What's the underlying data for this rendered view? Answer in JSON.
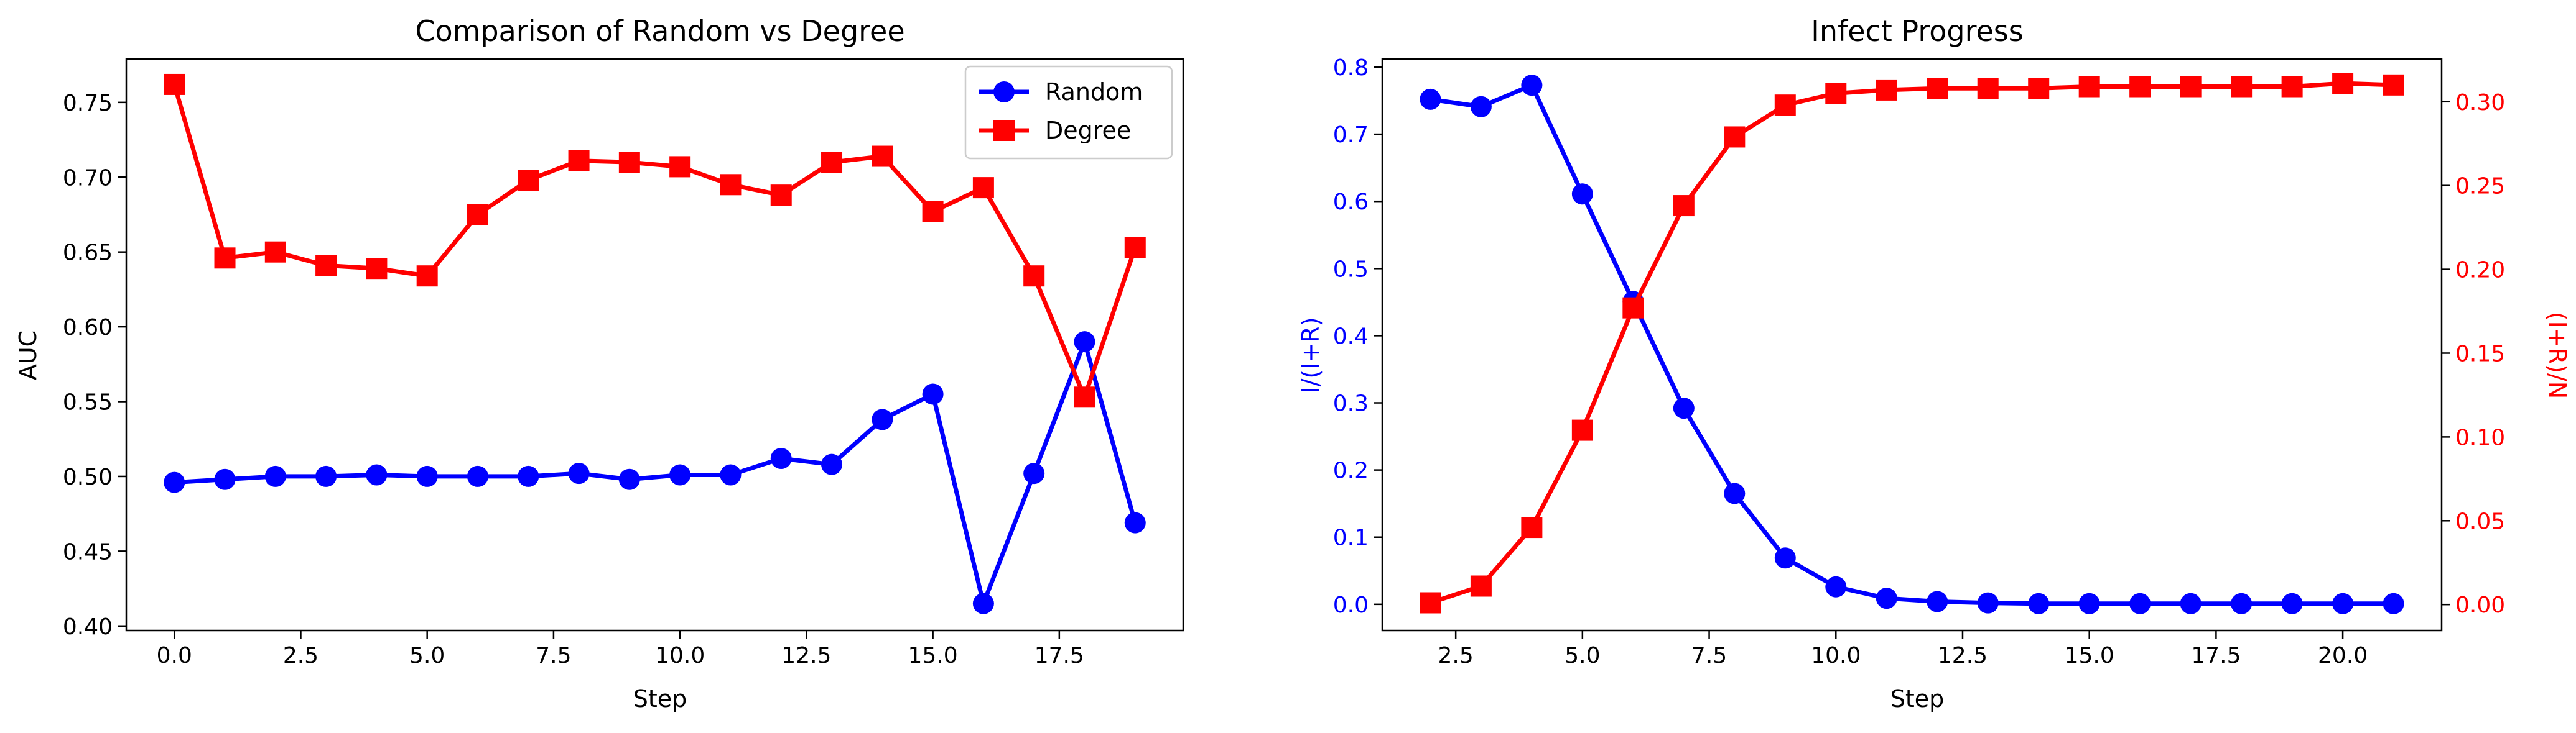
{
  "chart_data": [
    {
      "type": "line",
      "title": "Comparison of Random vs Degree",
      "xlabel": "Step",
      "ylabel": "AUC",
      "xlim": [
        -0.95,
        19.95
      ],
      "ylim": [
        0.397,
        0.779
      ],
      "xticks": [
        0.0,
        2.5,
        5.0,
        7.5,
        10.0,
        12.5,
        15.0,
        17.5
      ],
      "xtick_labels": [
        "0.0",
        "2.5",
        "5.0",
        "7.5",
        "10.0",
        "12.5",
        "15.0",
        "17.5"
      ],
      "yticks": [
        0.4,
        0.45,
        0.5,
        0.55,
        0.6,
        0.65,
        0.7,
        0.75
      ],
      "ytick_labels": [
        "0.40",
        "0.45",
        "0.50",
        "0.55",
        "0.60",
        "0.65",
        "0.70",
        "0.75"
      ],
      "grid": false,
      "legend": "top-right",
      "x": [
        0,
        1,
        2,
        3,
        4,
        5,
        6,
        7,
        8,
        9,
        10,
        11,
        12,
        13,
        14,
        15,
        16,
        17,
        18,
        19
      ],
      "series": [
        {
          "name": "Random",
          "color": "#0000ff",
          "marker": "circle",
          "values": [
            0.496,
            0.498,
            0.5,
            0.5,
            0.501,
            0.5,
            0.5,
            0.5,
            0.502,
            0.498,
            0.501,
            0.501,
            0.512,
            0.508,
            0.538,
            0.555,
            0.415,
            0.502,
            0.59,
            0.469
          ]
        },
        {
          "name": "Degree",
          "color": "#ff0000",
          "marker": "square",
          "values": [
            0.762,
            0.646,
            0.65,
            0.641,
            0.639,
            0.634,
            0.675,
            0.698,
            0.711,
            0.71,
            0.707,
            0.695,
            0.688,
            0.71,
            0.714,
            0.677,
            0.693,
            0.634,
            0.553,
            0.653
          ]
        }
      ]
    },
    {
      "type": "line",
      "title": "Infect Progress",
      "xlabel": "Step",
      "ylabel": "I/(I+R)",
      "ylabel_right": "(I+R)/N",
      "xlim": [
        1.05,
        21.95
      ],
      "ylim": [
        -0.039,
        0.812
      ],
      "ylim_right": [
        -0.0155,
        0.3255
      ],
      "xticks": [
        2.5,
        5.0,
        7.5,
        10.0,
        12.5,
        15.0,
        17.5,
        20.0
      ],
      "xtick_labels": [
        "2.5",
        "5.0",
        "7.5",
        "10.0",
        "12.5",
        "15.0",
        "17.5",
        "20.0"
      ],
      "yticks": [
        0.0,
        0.1,
        0.2,
        0.3,
        0.4,
        0.5,
        0.6,
        0.7,
        0.8
      ],
      "ytick_labels": [
        "0.0",
        "0.1",
        "0.2",
        "0.3",
        "0.4",
        "0.5",
        "0.6",
        "0.7",
        "0.8"
      ],
      "yticks_right": [
        0.0,
        0.05,
        0.1,
        0.15,
        0.2,
        0.25,
        0.3
      ],
      "ytick_labels_right": [
        "0.00",
        "0.05",
        "0.10",
        "0.15",
        "0.20",
        "0.25",
        "0.30"
      ],
      "grid": false,
      "left_color": "#0000ff",
      "right_color": "#ff0000",
      "x": [
        2,
        3,
        4,
        5,
        6,
        7,
        8,
        9,
        10,
        11,
        12,
        13,
        14,
        15,
        16,
        17,
        18,
        19,
        20,
        21
      ],
      "series": [
        {
          "axis": "left",
          "color": "#0000ff",
          "marker": "circle",
          "values": [
            0.752,
            0.741,
            0.773,
            0.611,
            0.451,
            0.292,
            0.165,
            0.069,
            0.026,
            0.009,
            0.004,
            0.002,
            0.001,
            0.001,
            0.001,
            0.001,
            0.001,
            0.001,
            0.001,
            0.001
          ]
        },
        {
          "axis": "right",
          "color": "#ff0000",
          "marker": "square",
          "values": [
            0.001,
            0.011,
            0.046,
            0.104,
            0.177,
            0.238,
            0.279,
            0.298,
            0.305,
            0.307,
            0.308,
            0.308,
            0.308,
            0.309,
            0.309,
            0.309,
            0.309,
            0.309,
            0.311,
            0.31
          ]
        }
      ]
    }
  ]
}
